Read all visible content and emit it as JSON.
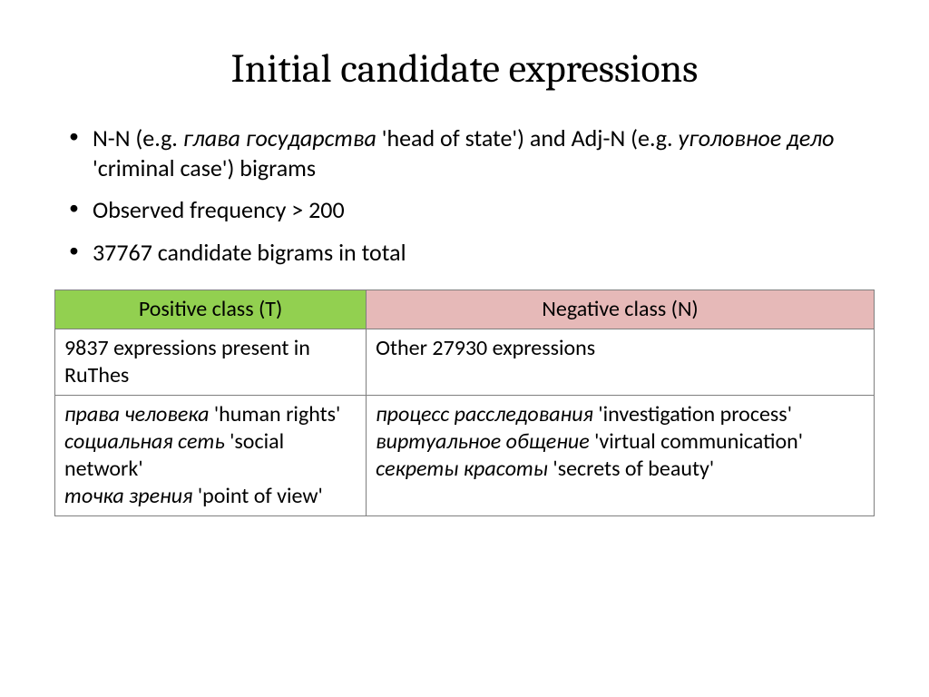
{
  "title": "Initial candidate expressions",
  "bullets": {
    "b1_pre": "N-N (e.g. ",
    "b1_it1": "глава государства",
    "b1_mid": " 'head of state') and Adj-N (e.g. ",
    "b1_it2": "уголовное дело",
    "b1_post": " 'criminal case') bigrams",
    "b2": "Observed frequency > 200",
    "b3": "37767 candidate bigrams in total"
  },
  "table": {
    "header_positive": "Positive class (T)",
    "header_negative": "Negative class (N)",
    "row1_left": "9837 expressions present in RuThes",
    "row1_right": "Other 27930 expressions",
    "row2_left_it1": "права человека",
    "row2_left_t1": " 'human rights'",
    "row2_left_it2": "социальная сеть",
    "row2_left_t2": " 'social network'",
    "row2_left_it3": "точка зрения",
    "row2_left_t3": " 'point of view'",
    "row2_right_it1": "процесс расследования",
    "row2_right_t1": " 'investigation process'",
    "row2_right_it2": "виртуальное общение",
    "row2_right_t2": " 'virtual communication'",
    "row2_right_it3": "секреты красоты",
    "row2_right_t3": " 'secrets of beauty'"
  },
  "colors": {
    "positive_bg": "#92d050",
    "negative_bg": "#e6b9b8",
    "border": "#7f7f7f",
    "background": "#ffffff",
    "text": "#000000"
  },
  "typography": {
    "title_font": "Cambria",
    "title_size_pt": 40,
    "body_font": "Calibri",
    "body_size_pt": 24,
    "table_size_pt": 22
  }
}
